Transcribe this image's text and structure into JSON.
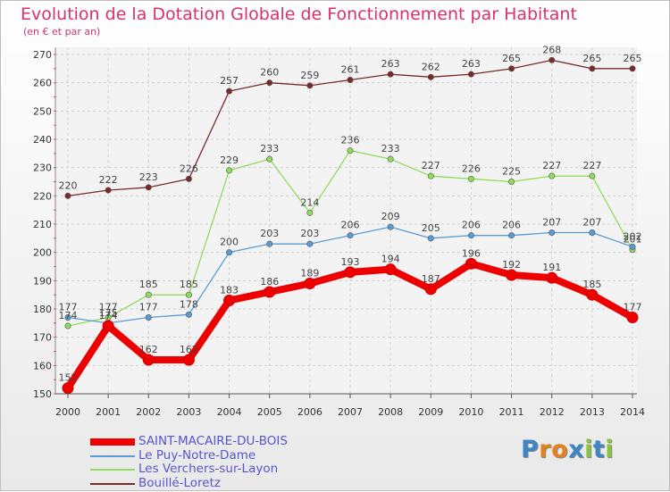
{
  "title": "Evolution de la Dotation Globale de Fonctionnement par Habitant",
  "subtitle": "(en € et par an)",
  "logo": {
    "text": "Proxiti",
    "letter_colors": [
      "#3d86c6",
      "#e2821d",
      "#e2821d",
      "#3d86c6",
      "#8ac43f",
      "#3d86c6",
      "#8ac43f"
    ]
  },
  "chart_data": {
    "type": "line",
    "title": "Evolution de la Dotation Globale de Fonctionnement par Habitant",
    "xlabel": "",
    "ylabel": "(en € et par an)",
    "x": [
      "2000",
      "2001",
      "2002",
      "2003",
      "2004",
      "2005",
      "2006",
      "2007",
      "2008",
      "2009",
      "2010",
      "2011",
      "2012",
      "2013",
      "2014"
    ],
    "ylim": [
      150,
      270
    ],
    "yticks": [
      150,
      160,
      170,
      180,
      190,
      200,
      210,
      220,
      230,
      240,
      250,
      260,
      270
    ],
    "grid": true,
    "legend_position": "bottom-left",
    "series": [
      {
        "name": "SAINT-MACAIRE-DU-BOIS",
        "color": "#ee0000",
        "values": [
          152,
          174,
          162,
          162,
          183,
          186,
          189,
          193,
          194,
          187,
          196,
          192,
          191,
          185,
          177
        ]
      },
      {
        "name": "Le Puy-Notre-Dame",
        "color": "#5b9bd5",
        "values": [
          177,
          175,
          177,
          178,
          200,
          203,
          203,
          206,
          209,
          205,
          206,
          206,
          207,
          207,
          202
        ]
      },
      {
        "name": "Les Verchers-sur-Layon",
        "color": "#8fdc5a",
        "values": [
          174,
          177,
          185,
          185,
          229,
          233,
          214,
          236,
          233,
          227,
          226,
          225,
          227,
          227,
          201
        ]
      },
      {
        "name": "Bouillé-Loretz",
        "color": "#7a2a2a",
        "values": [
          220,
          222,
          223,
          226,
          257,
          260,
          259,
          261,
          263,
          262,
          263,
          265,
          268,
          265,
          265
        ]
      }
    ]
  }
}
